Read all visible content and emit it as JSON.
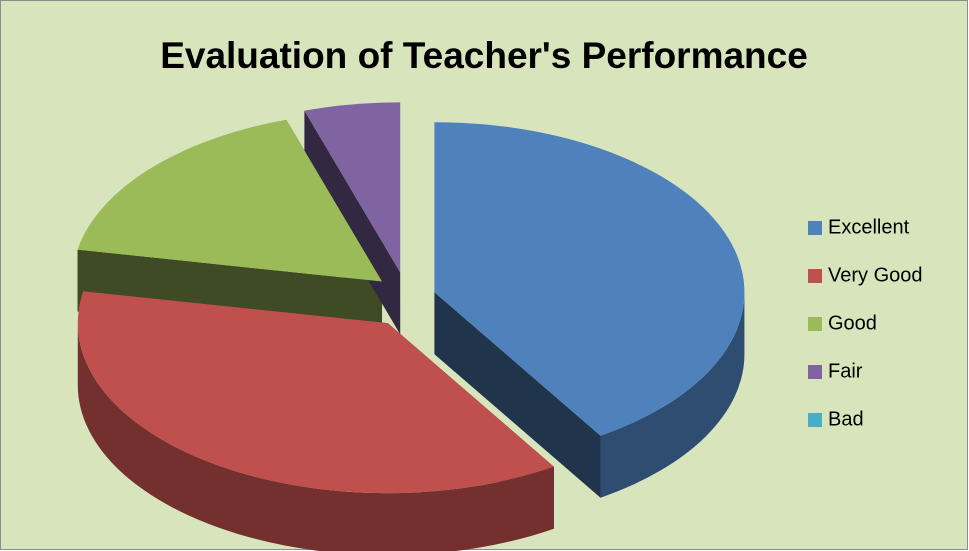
{
  "chart_data": {
    "type": "pie",
    "title": "Evaluation of Teacher's Performance",
    "categories": [
      "Excellent",
      "Very Good",
      "Good",
      "Fair",
      "Bad"
    ],
    "values": [
      41,
      37,
      17,
      5,
      0
    ],
    "colors": [
      "#4f81bd",
      "#c0504d",
      "#9bbb59",
      "#8064a2",
      "#4bacc6"
    ],
    "legend": "right"
  }
}
